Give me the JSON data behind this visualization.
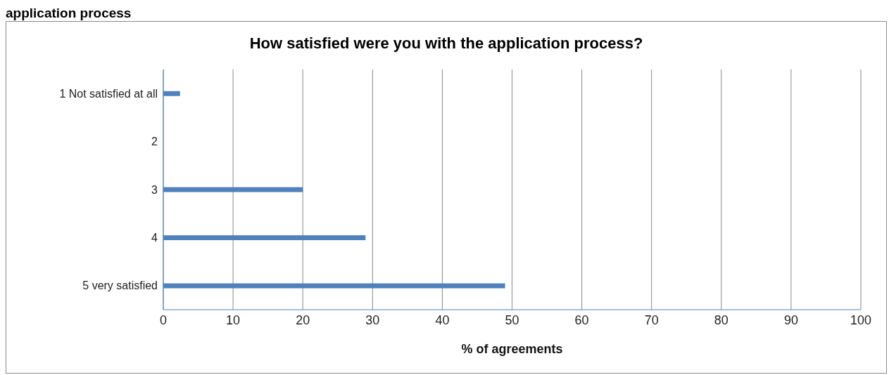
{
  "chart_data": {
    "type": "bar",
    "orientation": "horizontal",
    "title": "How satisfied were you with the application process?",
    "xlabel": "% of agreements",
    "annotations": [
      "application process"
    ],
    "categories": [
      "1 Not satisfied at all",
      "2",
      "3",
      "4",
      "5 very satisfied"
    ],
    "values": [
      2.4,
      0,
      20,
      29,
      49
    ],
    "color": "#4f81bd",
    "xlim": [
      0,
      100
    ],
    "xticks": [
      0,
      10,
      20,
      30,
      40,
      50,
      60,
      70,
      80,
      90,
      100
    ],
    "grid": "x"
  }
}
